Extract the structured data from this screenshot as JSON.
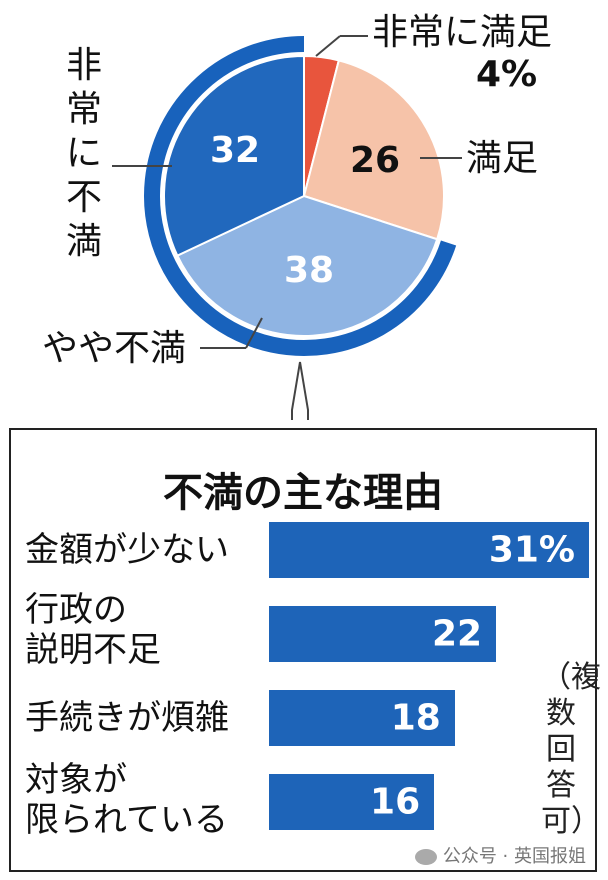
{
  "chart_data": [
    {
      "type": "pie",
      "slices": [
        {
          "label": "非常に満足",
          "value": 4,
          "value_label": "4%",
          "color": "#e8553d"
        },
        {
          "label": "満足",
          "value": 26,
          "value_label": "26",
          "color": "#f6c3a9"
        },
        {
          "label": "やや不満",
          "value": 38,
          "value_label": "38",
          "color": "#8fb4e3"
        },
        {
          "label": "非常に不満",
          "value": 32,
          "value_label": "32",
          "color": "#2168bd"
        }
      ],
      "highlight_color": "#1862bc",
      "label_colors": {
        "dark": "#111111",
        "light": "#ffffff"
      }
    },
    {
      "type": "bar",
      "orientation": "horizontal",
      "title": "不満の主な理由",
      "categories": [
        "金額が少ない",
        "行政の説明不足",
        "手続きが煩雑",
        "対象が限られている"
      ],
      "values": [
        31,
        22,
        18,
        16
      ],
      "value_labels": [
        "31%",
        "22",
        "18",
        "16"
      ],
      "bar_color": "#1e64b8",
      "note": "（複数回答可）"
    }
  ],
  "labels": {
    "pie_very_satisfied_name": "非常に満足",
    "pie_very_satisfied_pct": "4%",
    "pie_satisfied_name": "満足",
    "pie_somewhat_dissatisfied_name": "やや不満",
    "pie_very_dissatisfied_name": "非常に不満",
    "bar_cat_0": "金額が少ない",
    "bar_cat_1_line1": "行政の",
    "bar_cat_1_line2": "説明不足",
    "bar_cat_2": "手続きが煩雑",
    "bar_cat_3_line1": "対象が",
    "bar_cat_3_line2": "限られている"
  },
  "watermark": "公众号 · 英国报姐"
}
